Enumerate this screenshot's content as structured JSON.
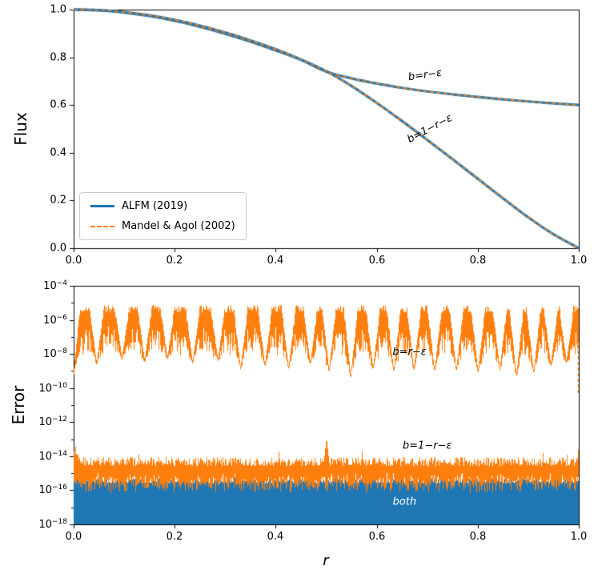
{
  "figure": {
    "background": "#ffffff"
  },
  "colors": {
    "blue": "#1f77b4",
    "orange": "#ff7f0e",
    "axis": "#000000",
    "legend_border": "#cccccc"
  },
  "chart_data": [
    {
      "type": "line",
      "title": "",
      "xlabel": "",
      "ylabel": "Flux",
      "xlim": [
        0.0,
        1.0
      ],
      "ylim": [
        0.0,
        1.0
      ],
      "xticks": [
        0.0,
        0.2,
        0.4,
        0.6,
        0.8,
        1.0
      ],
      "yticks": [
        0.0,
        0.2,
        0.4,
        0.6,
        0.8,
        1.0
      ],
      "grid": false,
      "legend_position": "lower left",
      "legend": [
        {
          "label": "ALFM (2019)",
          "color": "#1f77b4",
          "style": "solid",
          "width": 3
        },
        {
          "label": "Mandel & Agol (2002)",
          "color": "#ff7f0e",
          "style": "dashed",
          "width": 1.5
        }
      ],
      "annotations": [
        {
          "text": "b=r−ε",
          "x": 0.695,
          "y": 0.725,
          "rotation": -8
        },
        {
          "text": "b=1−r−ε",
          "x": 0.705,
          "y": 0.5,
          "rotation": -28
        }
      ],
      "series": [
        {
          "name": "b=r−ε",
          "x": [
            0,
            0.05,
            0.1,
            0.15,
            0.2,
            0.25,
            0.3,
            0.35,
            0.4,
            0.45,
            0.5,
            0.55,
            0.6,
            0.65,
            0.7,
            0.75,
            0.8,
            0.85,
            0.9,
            0.95,
            1.0
          ],
          "y": [
            1.0,
            0.997,
            0.988,
            0.973,
            0.953,
            0.928,
            0.899,
            0.866,
            0.829,
            0.789,
            0.74,
            0.712,
            0.69,
            0.672,
            0.657,
            0.645,
            0.634,
            0.624,
            0.615,
            0.607,
            0.6
          ]
        },
        {
          "name": "b=1−r−ε",
          "x": [
            0,
            0.05,
            0.1,
            0.15,
            0.2,
            0.25,
            0.3,
            0.35,
            0.4,
            0.45,
            0.5,
            0.55,
            0.6,
            0.65,
            0.7,
            0.75,
            0.8,
            0.85,
            0.9,
            0.95,
            1.0
          ],
          "y": [
            1.0,
            0.998,
            0.99,
            0.976,
            0.957,
            0.933,
            0.904,
            0.871,
            0.834,
            0.791,
            0.742,
            0.68,
            0.609,
            0.533,
            0.454,
            0.373,
            0.291,
            0.209,
            0.129,
            0.058,
            0.0
          ]
        }
      ]
    },
    {
      "type": "line",
      "yscale": "log",
      "title": "",
      "xlabel": "r",
      "ylabel": "Error",
      "xlim": [
        0.0,
        1.0
      ],
      "ylim_exp": [
        -18,
        -4
      ],
      "xticks": [
        0.0,
        0.2,
        0.4,
        0.6,
        0.8,
        1.0
      ],
      "ytick_exponents": [
        -4,
        -6,
        -8,
        -10,
        -12,
        -14,
        -16,
        -18
      ],
      "grid": false,
      "annotations": [
        {
          "text": "b=r−ε",
          "x": 0.665,
          "y_exp": -7.9
        },
        {
          "text": "b=1−r−ε",
          "x": 0.7,
          "y_exp": -13.4
        },
        {
          "text": "both",
          "x": 0.655,
          "y_exp": -16.7
        }
      ],
      "noise_bands": [
        {
          "name": "error b=r−ε",
          "color": "#ff7f0e",
          "top_exp": -5.35,
          "thickness_exp": [
            1.2,
            2.6
          ],
          "dip_width": 0.014,
          "dips": [
            [
              0.045,
              -8.5
            ],
            [
              0.095,
              -8.2
            ],
            [
              0.14,
              -8.35
            ],
            [
              0.185,
              -8.2
            ],
            [
              0.235,
              -8.45
            ],
            [
              0.285,
              -8.3
            ],
            [
              0.33,
              -8.8
            ],
            [
              0.378,
              -8.6
            ],
            [
              0.425,
              -8.75
            ],
            [
              0.468,
              -8.5
            ],
            [
              0.505,
              -8.9
            ],
            [
              0.548,
              -9.25
            ],
            [
              0.592,
              -8.8
            ],
            [
              0.633,
              -8.9
            ],
            [
              0.673,
              -8.85
            ],
            [
              0.714,
              -8.9
            ],
            [
              0.757,
              -8.85
            ],
            [
              0.8,
              -8.95
            ],
            [
              0.843,
              -8.85
            ],
            [
              0.876,
              -9.2
            ],
            [
              0.91,
              -9.0
            ],
            [
              0.944,
              -8.6
            ],
            [
              0.975,
              -8.4
            ]
          ],
          "left_ramp_exp": -8.8,
          "right_dash_from_exp": -5.5,
          "right_dash_to_exp": -10.4
        },
        {
          "name": "error b=1−r−ε",
          "color": "#ff7f0e",
          "top_exp": -14.05,
          "thickness_exp": [
            0.9,
            1.6
          ],
          "spike": {
            "x": 0.5,
            "top_exp": -12.9,
            "width": 0.007
          },
          "left_edge_exp": -13.75,
          "right_edge_exp": -13.5
        },
        {
          "name": "error both",
          "color": "#1f77b4",
          "top_exp": -15.45,
          "fill_to_exp": -18
        }
      ]
    }
  ]
}
